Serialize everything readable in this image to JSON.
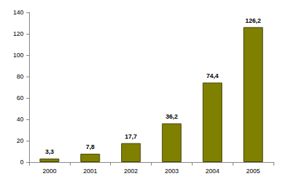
{
  "chart_data": {
    "type": "bar",
    "categories": [
      "2000",
      "2001",
      "2002",
      "2003",
      "2004",
      "2005"
    ],
    "values": [
      3.3,
      7.8,
      17.7,
      36.2,
      74.4,
      126.2
    ],
    "value_labels": [
      "3,3",
      "7,8",
      "17,7",
      "36,2",
      "74,4",
      "126,2"
    ],
    "color": "#808000",
    "ylim": [
      0,
      140
    ],
    "yticks": [
      0,
      20,
      40,
      60,
      80,
      100,
      120,
      140
    ],
    "grid": false,
    "data_labels": true
  }
}
